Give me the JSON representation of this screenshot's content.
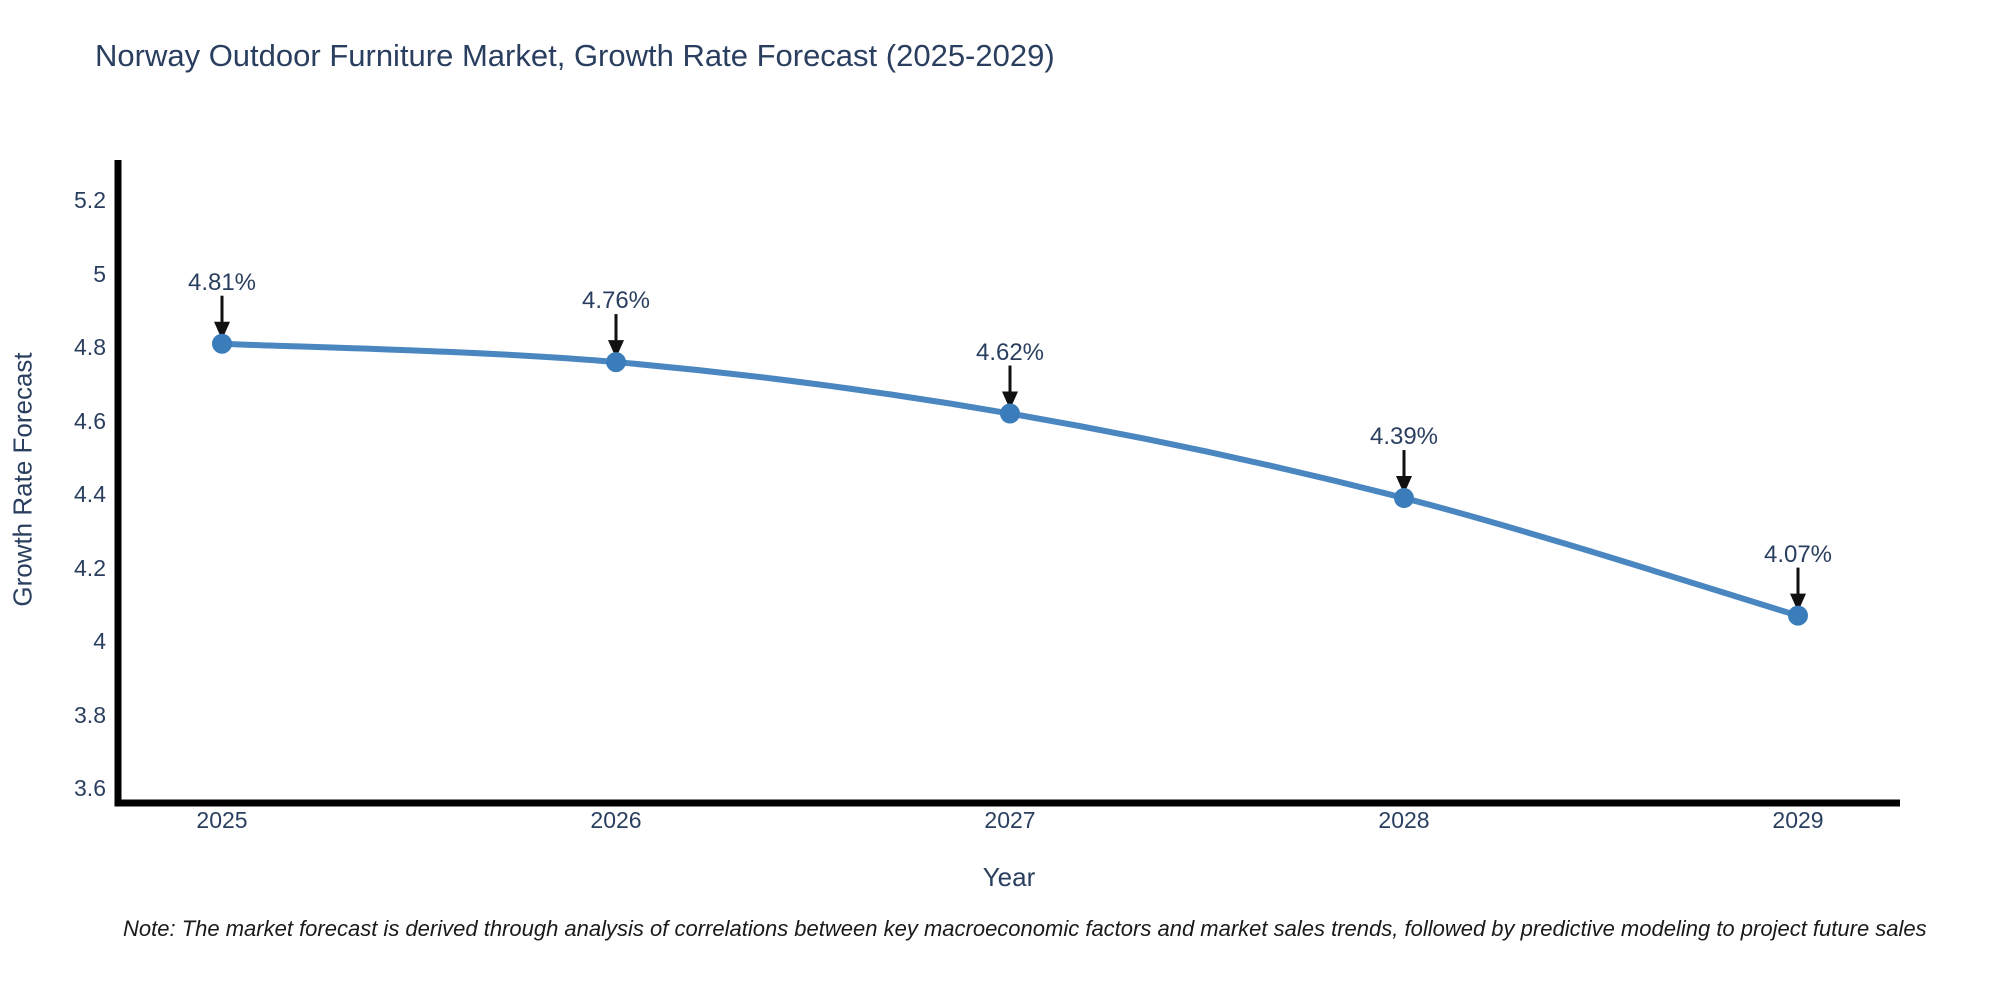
{
  "title": "Norway Outdoor Furniture Market, Growth Rate Forecast (2025-2029)",
  "note": "Note: The market forecast is derived through analysis of correlations between key macroeconomic factors and market sales trends, followed by predictive modeling to project future sales",
  "chart_data": {
    "type": "line",
    "title": "Norway Outdoor Furniture Market, Growth Rate Forecast (2025-2029)",
    "x": [
      2025,
      2026,
      2027,
      2028,
      2029
    ],
    "x_tick_labels": [
      "2025",
      "2026",
      "2027",
      "2028",
      "2029"
    ],
    "series": [
      {
        "name": "Growth Rate Forecast",
        "values": [
          4.81,
          4.76,
          4.62,
          4.39,
          4.07
        ]
      }
    ],
    "point_labels": [
      "4.81%",
      "4.76%",
      "4.62%",
      "4.39%",
      "4.07%"
    ],
    "xlabel": "Year",
    "ylabel": "Growth Rate Forecast",
    "ylim": [
      3.56,
      5.31
    ],
    "yticks": [
      5.2,
      5.0,
      4.8,
      4.6,
      4.4,
      4.2,
      4.0,
      3.8,
      3.6
    ],
    "ytick_labels": [
      "5.2",
      "5",
      "4.8",
      "4.6",
      "4.4",
      "4.2",
      "4",
      "3.8",
      "3.6"
    ],
    "grid": false,
    "legend": "none",
    "line_shape": "spline",
    "colors": {
      "line": "#4a86c0",
      "marker": "#3b7cba",
      "axis": "#000000",
      "tick_text": "#2a3f5f",
      "annotation_arrow": "#111111",
      "note_text": "#1a1a1a"
    }
  }
}
